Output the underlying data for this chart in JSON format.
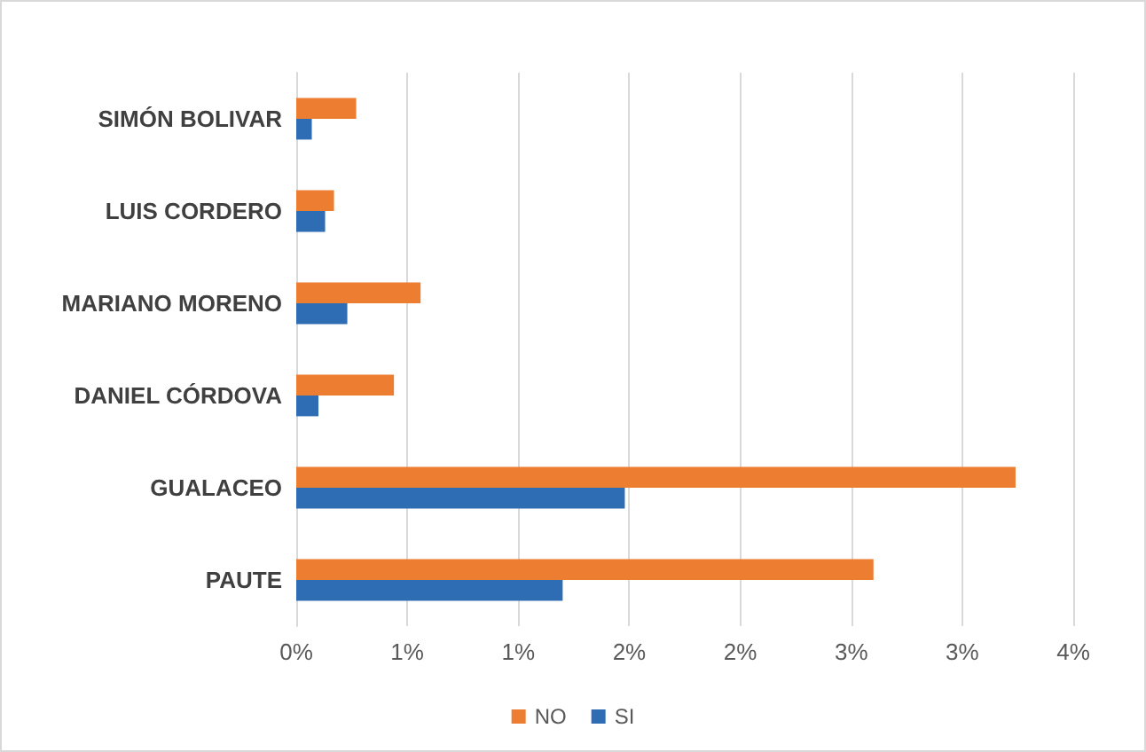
{
  "chart_data": {
    "type": "bar",
    "orientation": "horizontal",
    "categories": [
      "SIMÓN BOLIVAR",
      "LUIS CORDERO",
      "MARIANO MORENO",
      "DANIEL CÓRDOVA",
      "GUALACEO",
      "PAUTE"
    ],
    "series": [
      {
        "name": "NO",
        "color": "#ed7d31",
        "values": [
          0.27,
          0.17,
          0.56,
          0.44,
          3.24,
          2.6
        ]
      },
      {
        "name": "SI",
        "color": "#2e6db4",
        "values": [
          0.07,
          0.13,
          0.23,
          0.1,
          1.48,
          1.2
        ]
      }
    ],
    "xlim": [
      0,
      3.5
    ],
    "xticks": [
      {
        "value": 0,
        "label": "0%"
      },
      {
        "value": 0.5,
        "label": "1%"
      },
      {
        "value": 1,
        "label": "1%"
      },
      {
        "value": 1.5,
        "label": "2%"
      },
      {
        "value": 2,
        "label": "2%"
      },
      {
        "value": 2.5,
        "label": "3%"
      },
      {
        "value": 3,
        "label": "3%"
      },
      {
        "value": 3.5,
        "label": "4%"
      }
    ],
    "grid": "x",
    "legend": "bottom"
  }
}
